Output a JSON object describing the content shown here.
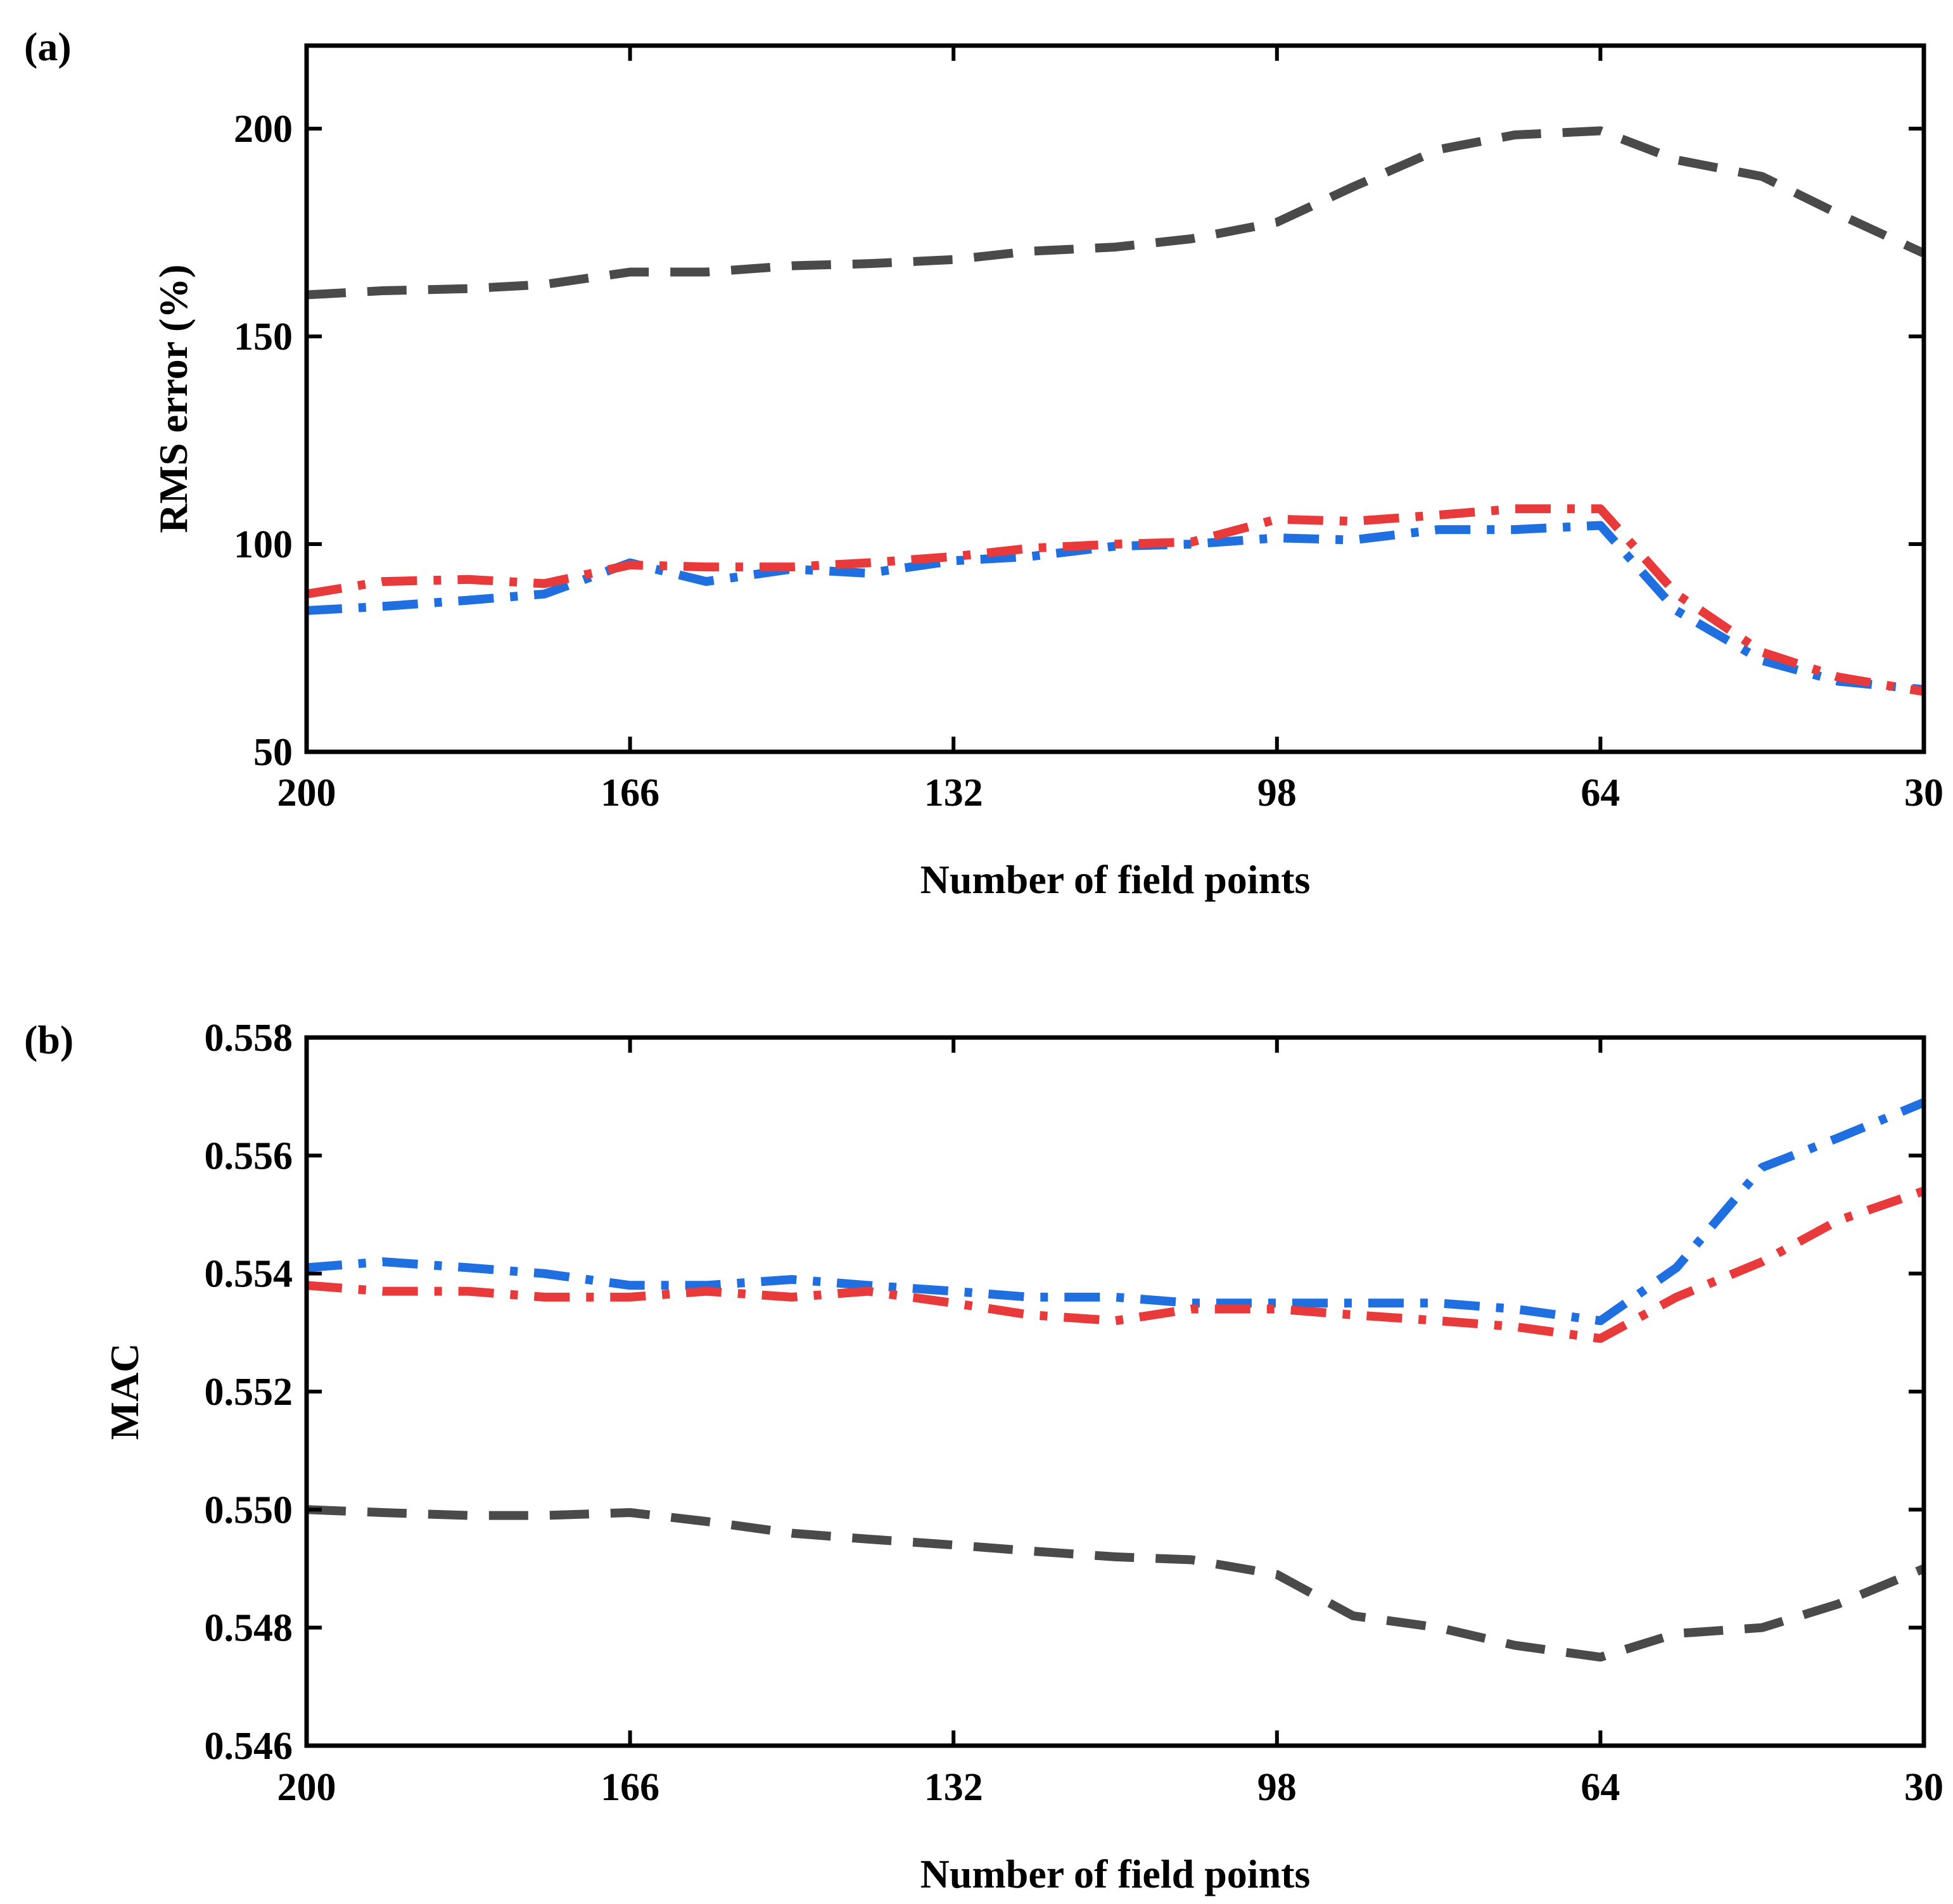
{
  "chart_data": [
    {
      "type": "line",
      "panel_label": "(a)",
      "xlabel": "Number of field points",
      "ylabel": "RMS error (%)",
      "xlim": [
        200,
        30
      ],
      "ylim": [
        50,
        220
      ],
      "xticks": [
        200,
        166,
        132,
        98,
        64,
        30
      ],
      "yticks": [
        50,
        100,
        150,
        200
      ],
      "grid": false,
      "series": [
        {
          "name": "black-dashed",
          "color": "#4a4a4a",
          "dash": "dashed",
          "x": [
            200,
            192,
            183,
            175,
            166,
            158,
            149,
            141,
            132,
            124,
            115,
            107,
            98,
            90,
            81,
            73,
            64,
            56,
            47,
            39,
            30
          ],
          "y": [
            160,
            161,
            161.5,
            162.5,
            165.5,
            165.5,
            167,
            167.5,
            168.5,
            170.5,
            171.5,
            173.5,
            177.5,
            186,
            195,
            198.5,
            199.5,
            192.5,
            188.5,
            179.5,
            170
          ]
        },
        {
          "name": "blue-dashdot",
          "color": "#1f6fe0",
          "dash": "dashdot",
          "x": [
            200,
            192,
            183,
            175,
            166,
            158,
            149,
            141,
            132,
            124,
            115,
            107,
            98,
            90,
            81,
            73,
            64,
            56,
            47,
            39,
            30
          ],
          "y": [
            84,
            85,
            86.5,
            88,
            95.5,
            91,
            94,
            93,
            96,
            97,
            99.5,
            100,
            101.5,
            101,
            103.5,
            103.5,
            104.5,
            84,
            72,
            67,
            65
          ]
        },
        {
          "name": "red-dashdot",
          "color": "#e83a3a",
          "dash": "dashdot",
          "x": [
            200,
            192,
            183,
            175,
            166,
            158,
            149,
            141,
            132,
            124,
            115,
            107,
            98,
            90,
            81,
            73,
            64,
            56,
            47,
            39,
            30
          ],
          "y": [
            88,
            91,
            91.5,
            90.5,
            95,
            94.5,
            94.5,
            95.5,
            97,
            99,
            100,
            100.5,
            106,
            105.5,
            107,
            108.5,
            108.5,
            88,
            74,
            68,
            64.5
          ]
        }
      ]
    },
    {
      "type": "line",
      "panel_label": "(b)",
      "xlabel": "Number of field points",
      "ylabel": "MAC",
      "xlim": [
        200,
        30
      ],
      "ylim": [
        0.546,
        0.558
      ],
      "xticks": [
        200,
        166,
        132,
        98,
        64,
        30
      ],
      "yticks": [
        0.546,
        0.548,
        0.55,
        0.552,
        0.554,
        0.556,
        0.558
      ],
      "ytick_labels": [
        "0.546",
        "0.548",
        "0.550",
        "0.552",
        "0.554",
        "0.556",
        "0.558"
      ],
      "grid": false,
      "series": [
        {
          "name": "black-dashed",
          "color": "#4a4a4a",
          "dash": "dashed",
          "x": [
            200,
            192,
            183,
            175,
            166,
            158,
            149,
            141,
            132,
            124,
            115,
            107,
            98,
            90,
            81,
            73,
            64,
            56,
            47,
            39,
            30
          ],
          "y": [
            0.55,
            0.54995,
            0.5499,
            0.5499,
            0.54995,
            0.5498,
            0.5496,
            0.5495,
            0.5494,
            0.5493,
            0.5492,
            0.54915,
            0.5489,
            0.5482,
            0.548,
            0.5477,
            0.5475,
            0.5479,
            0.548,
            0.5484,
            0.549
          ]
        },
        {
          "name": "blue-dashdot",
          "color": "#1f6fe0",
          "dash": "dashdot",
          "x": [
            200,
            192,
            183,
            175,
            166,
            158,
            149,
            141,
            132,
            124,
            115,
            107,
            98,
            90,
            81,
            73,
            64,
            56,
            47,
            39,
            30
          ],
          "y": [
            0.5541,
            0.5542,
            0.5541,
            0.554,
            0.5538,
            0.5538,
            0.5539,
            0.5538,
            0.5537,
            0.5536,
            0.5536,
            0.5535,
            0.5535,
            0.5535,
            0.5535,
            0.5534,
            0.5532,
            0.5541,
            0.5558,
            0.5563,
            0.5569
          ]
        },
        {
          "name": "red-dashdot",
          "color": "#e83a3a",
          "dash": "dashdot",
          "x": [
            200,
            192,
            183,
            175,
            166,
            158,
            149,
            141,
            132,
            124,
            115,
            107,
            98,
            90,
            81,
            73,
            64,
            56,
            47,
            39,
            30
          ],
          "y": [
            0.5538,
            0.5537,
            0.5537,
            0.5536,
            0.5536,
            0.5537,
            0.5536,
            0.5537,
            0.5535,
            0.5533,
            0.5532,
            0.5534,
            0.5534,
            0.5533,
            0.5532,
            0.5531,
            0.5529,
            0.5536,
            0.5542,
            0.5549,
            0.5554
          ]
        }
      ]
    }
  ]
}
